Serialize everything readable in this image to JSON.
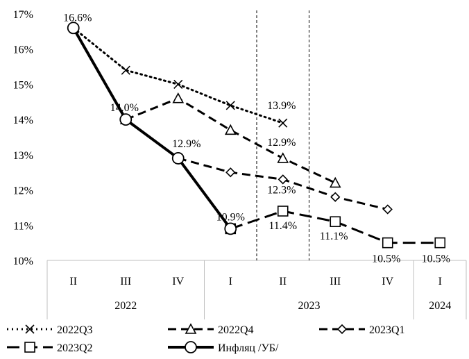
{
  "chart_data": {
    "type": "line",
    "y_axis": {
      "min": 0.1,
      "max": 0.17,
      "ticks": [
        "10%",
        "11%",
        "12%",
        "13%",
        "14%",
        "15%",
        "16%",
        "17%"
      ]
    },
    "grid": false,
    "categories": [
      {
        "quarter": "II",
        "year": "2022"
      },
      {
        "quarter": "III",
        "year": "2022"
      },
      {
        "quarter": "IV",
        "year": "2022"
      },
      {
        "quarter": "I",
        "year": "2023"
      },
      {
        "quarter": "II",
        "year": "2023"
      },
      {
        "quarter": "III",
        "year": "2023"
      },
      {
        "quarter": "IV",
        "year": "2023"
      },
      {
        "quarter": "I",
        "year": "2024"
      }
    ],
    "year_groups": [
      {
        "label": "2022",
        "start": 0,
        "end": 2
      },
      {
        "label": "2023",
        "start": 3,
        "end": 6
      },
      {
        "label": "2024",
        "start": 7,
        "end": 7
      }
    ],
    "reference_lines_between": [
      [
        3,
        4
      ],
      [
        4,
        5
      ]
    ],
    "series": [
      {
        "name": "2022Q3",
        "color": "#000000",
        "style": "dotted",
        "marker": "x",
        "values": [
          0.166,
          0.154,
          0.15,
          0.144,
          0.139,
          null,
          null,
          null
        ],
        "labels": [
          null,
          null,
          null,
          null,
          "13.9%",
          null,
          null,
          null
        ]
      },
      {
        "name": "2022Q4",
        "color": "#000000",
        "style": "dashed",
        "marker": "triangle",
        "values": [
          null,
          0.14,
          0.146,
          0.137,
          0.129,
          0.122,
          null,
          null
        ],
        "labels": [
          null,
          null,
          null,
          null,
          "12.9%",
          null,
          null,
          null
        ]
      },
      {
        "name": "2023Q1",
        "color": "#000000",
        "style": "dashed",
        "marker": "diamond",
        "values": [
          null,
          null,
          0.129,
          0.125,
          0.123,
          0.118,
          0.1145,
          null
        ],
        "labels": [
          null,
          null,
          null,
          null,
          "12.3%",
          null,
          null,
          null
        ]
      },
      {
        "name": "2023Q2",
        "color": "#000000",
        "style": "long-dash",
        "marker": "square",
        "values": [
          null,
          null,
          null,
          0.109,
          0.114,
          0.111,
          0.105,
          0.105
        ],
        "labels": [
          null,
          null,
          null,
          null,
          "11.4%",
          "11.1%",
          "10.5%",
          "10.5%"
        ]
      },
      {
        "name": "Инфляц /УБ/",
        "color": "#000000",
        "style": "solid-thick",
        "marker": "circle",
        "values": [
          0.166,
          0.14,
          0.129,
          0.109,
          null,
          null,
          null,
          null
        ],
        "labels": [
          "16.6%",
          "14.0%",
          "12.9%",
          "10.9%",
          null,
          null,
          null,
          null
        ]
      }
    ],
    "legend": {
      "position": "bottom",
      "rows": [
        [
          "2022Q3",
          "2022Q4",
          "2023Q1"
        ],
        [
          "2023Q2",
          "Инфляц /УБ/"
        ]
      ]
    }
  }
}
